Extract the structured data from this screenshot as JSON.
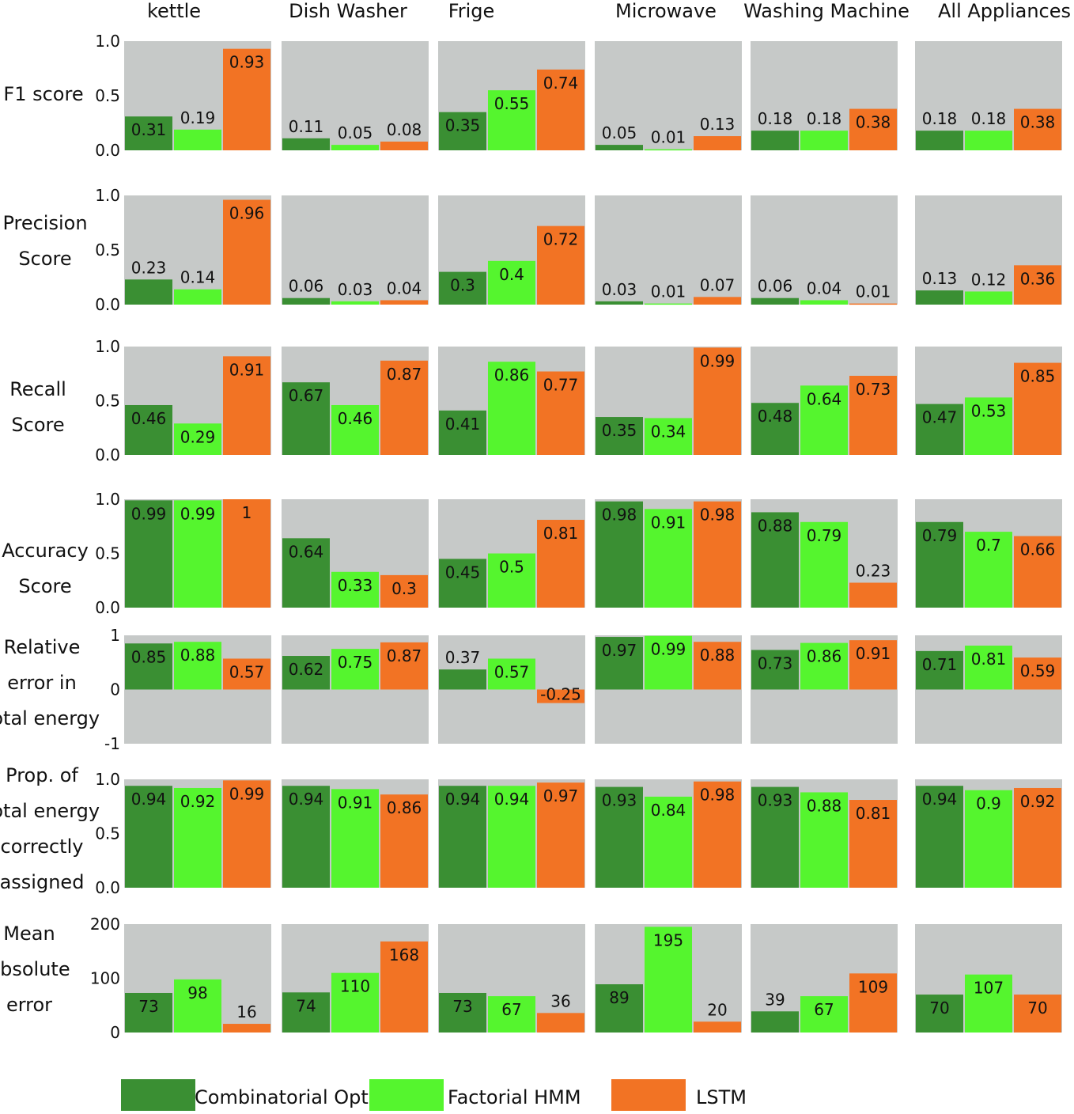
{
  "colors": {
    "panel_bg": "#c6c9c8",
    "combinatorial": "#3a8f33",
    "fhmm": "#55f52e",
    "lstm": "#f27324"
  },
  "chart_data": {
    "type": "bar",
    "layout": "small-multiples grid (metrics as rows, appliances as columns)",
    "appliances": [
      "kettle",
      "Dish Washer",
      "Frige",
      "Microwave",
      "Washing Machine",
      "All Appliances"
    ],
    "series_names": [
      "Combinatorial Opt.",
      "Factorial HMM",
      "LSTM"
    ],
    "metrics": [
      {
        "label_lines": [
          "F1 score"
        ],
        "ticks": [
          "1.0",
          "0.5",
          "0.0"
        ],
        "ylim": [
          0,
          1
        ],
        "values": [
          [
            0.31,
            0.19,
            0.93
          ],
          [
            0.11,
            0.05,
            0.08
          ],
          [
            0.35,
            0.55,
            0.74
          ],
          [
            0.05,
            0.01,
            0.13
          ],
          [
            0.18,
            0.18,
            0.38
          ],
          [
            0.18,
            0.18,
            0.38
          ]
        ],
        "labels": [
          [
            "0.31",
            "0.19",
            "0.93"
          ],
          [
            "0.11",
            "0.05",
            "0.08"
          ],
          [
            "0.35",
            "0.55",
            "0.74"
          ],
          [
            "0.05",
            "0.01",
            "0.13"
          ],
          [
            "0.18",
            "0.18",
            "0.38"
          ],
          [
            "0.18",
            "0.18",
            "0.38"
          ]
        ]
      },
      {
        "label_lines": [
          "Precision",
          "Score"
        ],
        "ticks": [
          "1.0",
          "0.5",
          "0.0"
        ],
        "ylim": [
          0,
          1
        ],
        "values": [
          [
            0.23,
            0.14,
            0.96
          ],
          [
            0.06,
            0.03,
            0.04
          ],
          [
            0.3,
            0.4,
            0.72
          ],
          [
            0.03,
            0.01,
            0.07
          ],
          [
            0.06,
            0.04,
            0.01
          ],
          [
            0.13,
            0.12,
            0.36
          ]
        ],
        "labels": [
          [
            "0.23",
            "0.14",
            "0.96"
          ],
          [
            "0.06",
            "0.03",
            "0.04"
          ],
          [
            "0.3",
            "0.4",
            "0.72"
          ],
          [
            "0.03",
            "0.01",
            "0.07"
          ],
          [
            "0.06",
            "0.04",
            "0.01"
          ],
          [
            "0.13",
            "0.12",
            "0.36"
          ]
        ]
      },
      {
        "label_lines": [
          "Recall",
          "Score"
        ],
        "ticks": [
          "1.0",
          "0.5",
          "0.0"
        ],
        "ylim": [
          0,
          1
        ],
        "values": [
          [
            0.46,
            0.29,
            0.91
          ],
          [
            0.67,
            0.46,
            0.87
          ],
          [
            0.41,
            0.86,
            0.77
          ],
          [
            0.35,
            0.34,
            0.99
          ],
          [
            0.48,
            0.64,
            0.73
          ],
          [
            0.47,
            0.53,
            0.85
          ]
        ],
        "labels": [
          [
            "0.46",
            "0.29",
            "0.91"
          ],
          [
            "0.67",
            "0.46",
            "0.87"
          ],
          [
            "0.41",
            "0.86",
            "0.77"
          ],
          [
            "0.35",
            "0.34",
            "0.99"
          ],
          [
            "0.48",
            "0.64",
            "0.73"
          ],
          [
            "0.47",
            "0.53",
            "0.85"
          ]
        ]
      },
      {
        "label_lines": [
          "Accuracy",
          "Score"
        ],
        "ticks": [
          "1.0",
          "0.5",
          "0.0"
        ],
        "ylim": [
          0,
          1
        ],
        "values": [
          [
            0.99,
            0.99,
            1
          ],
          [
            0.64,
            0.33,
            0.3
          ],
          [
            0.45,
            0.5,
            0.81
          ],
          [
            0.98,
            0.91,
            0.98
          ],
          [
            0.88,
            0.79,
            0.23
          ],
          [
            0.79,
            0.7,
            0.66
          ]
        ],
        "labels": [
          [
            "0.99",
            "0.99",
            "1"
          ],
          [
            "0.64",
            "0.33",
            "0.3"
          ],
          [
            "0.45",
            "0.5",
            "0.81"
          ],
          [
            "0.98",
            "0.91",
            "0.98"
          ],
          [
            "0.88",
            "0.79",
            "0.23"
          ],
          [
            "0.79",
            "0.7",
            "0.66"
          ]
        ]
      },
      {
        "label_lines": [
          "Relative",
          "error in",
          "total energy"
        ],
        "ticks": [
          "1",
          "0",
          "-1"
        ],
        "ylim": [
          -1,
          1
        ],
        "values": [
          [
            0.85,
            0.88,
            0.57
          ],
          [
            0.62,
            0.75,
            0.87
          ],
          [
            0.37,
            0.57,
            -0.25
          ],
          [
            0.97,
            0.99,
            0.88
          ],
          [
            0.73,
            0.86,
            0.91
          ],
          [
            0.71,
            0.81,
            0.59
          ]
        ],
        "labels": [
          [
            "0.85",
            "0.88",
            "0.57"
          ],
          [
            "0.62",
            "0.75",
            "0.87"
          ],
          [
            "0.37",
            "0.57",
            "-0.25"
          ],
          [
            "0.97",
            "0.99",
            "0.88"
          ],
          [
            "0.73",
            "0.86",
            "0.91"
          ],
          [
            "0.71",
            "0.81",
            "0.59"
          ]
        ]
      },
      {
        "label_lines": [
          "Prop. of",
          "total energy",
          "correctly",
          "assigned"
        ],
        "ticks": [
          "1.0",
          "0.5",
          "0.0"
        ],
        "ylim": [
          0,
          1
        ],
        "values": [
          [
            0.94,
            0.92,
            0.99
          ],
          [
            0.94,
            0.91,
            0.86
          ],
          [
            0.94,
            0.94,
            0.97
          ],
          [
            0.93,
            0.84,
            0.98
          ],
          [
            0.93,
            0.88,
            0.81
          ],
          [
            0.94,
            0.9,
            0.92
          ]
        ],
        "labels": [
          [
            "0.94",
            "0.92",
            "0.99"
          ],
          [
            "0.94",
            "0.91",
            "0.86"
          ],
          [
            "0.94",
            "0.94",
            "0.97"
          ],
          [
            "0.93",
            "0.84",
            "0.98"
          ],
          [
            "0.93",
            "0.88",
            "0.81"
          ],
          [
            "0.94",
            "0.9",
            "0.92"
          ]
        ]
      },
      {
        "label_lines": [
          "Mean",
          "absolute",
          "error"
        ],
        "ticks": [
          "200",
          "100",
          "0"
        ],
        "ylim": [
          0,
          200
        ],
        "values": [
          [
            73,
            98,
            16
          ],
          [
            74,
            110,
            168
          ],
          [
            73,
            67,
            36
          ],
          [
            89,
            195,
            20
          ],
          [
            39,
            67,
            109
          ],
          [
            70,
            107,
            70
          ]
        ],
        "labels": [
          [
            "73",
            "98",
            "16"
          ],
          [
            "74",
            "110",
            "168"
          ],
          [
            "73",
            "67",
            "36"
          ],
          [
            "89",
            "195",
            "20"
          ],
          [
            "39",
            "67",
            "109"
          ],
          [
            "70",
            "107",
            "70"
          ]
        ]
      }
    ]
  }
}
